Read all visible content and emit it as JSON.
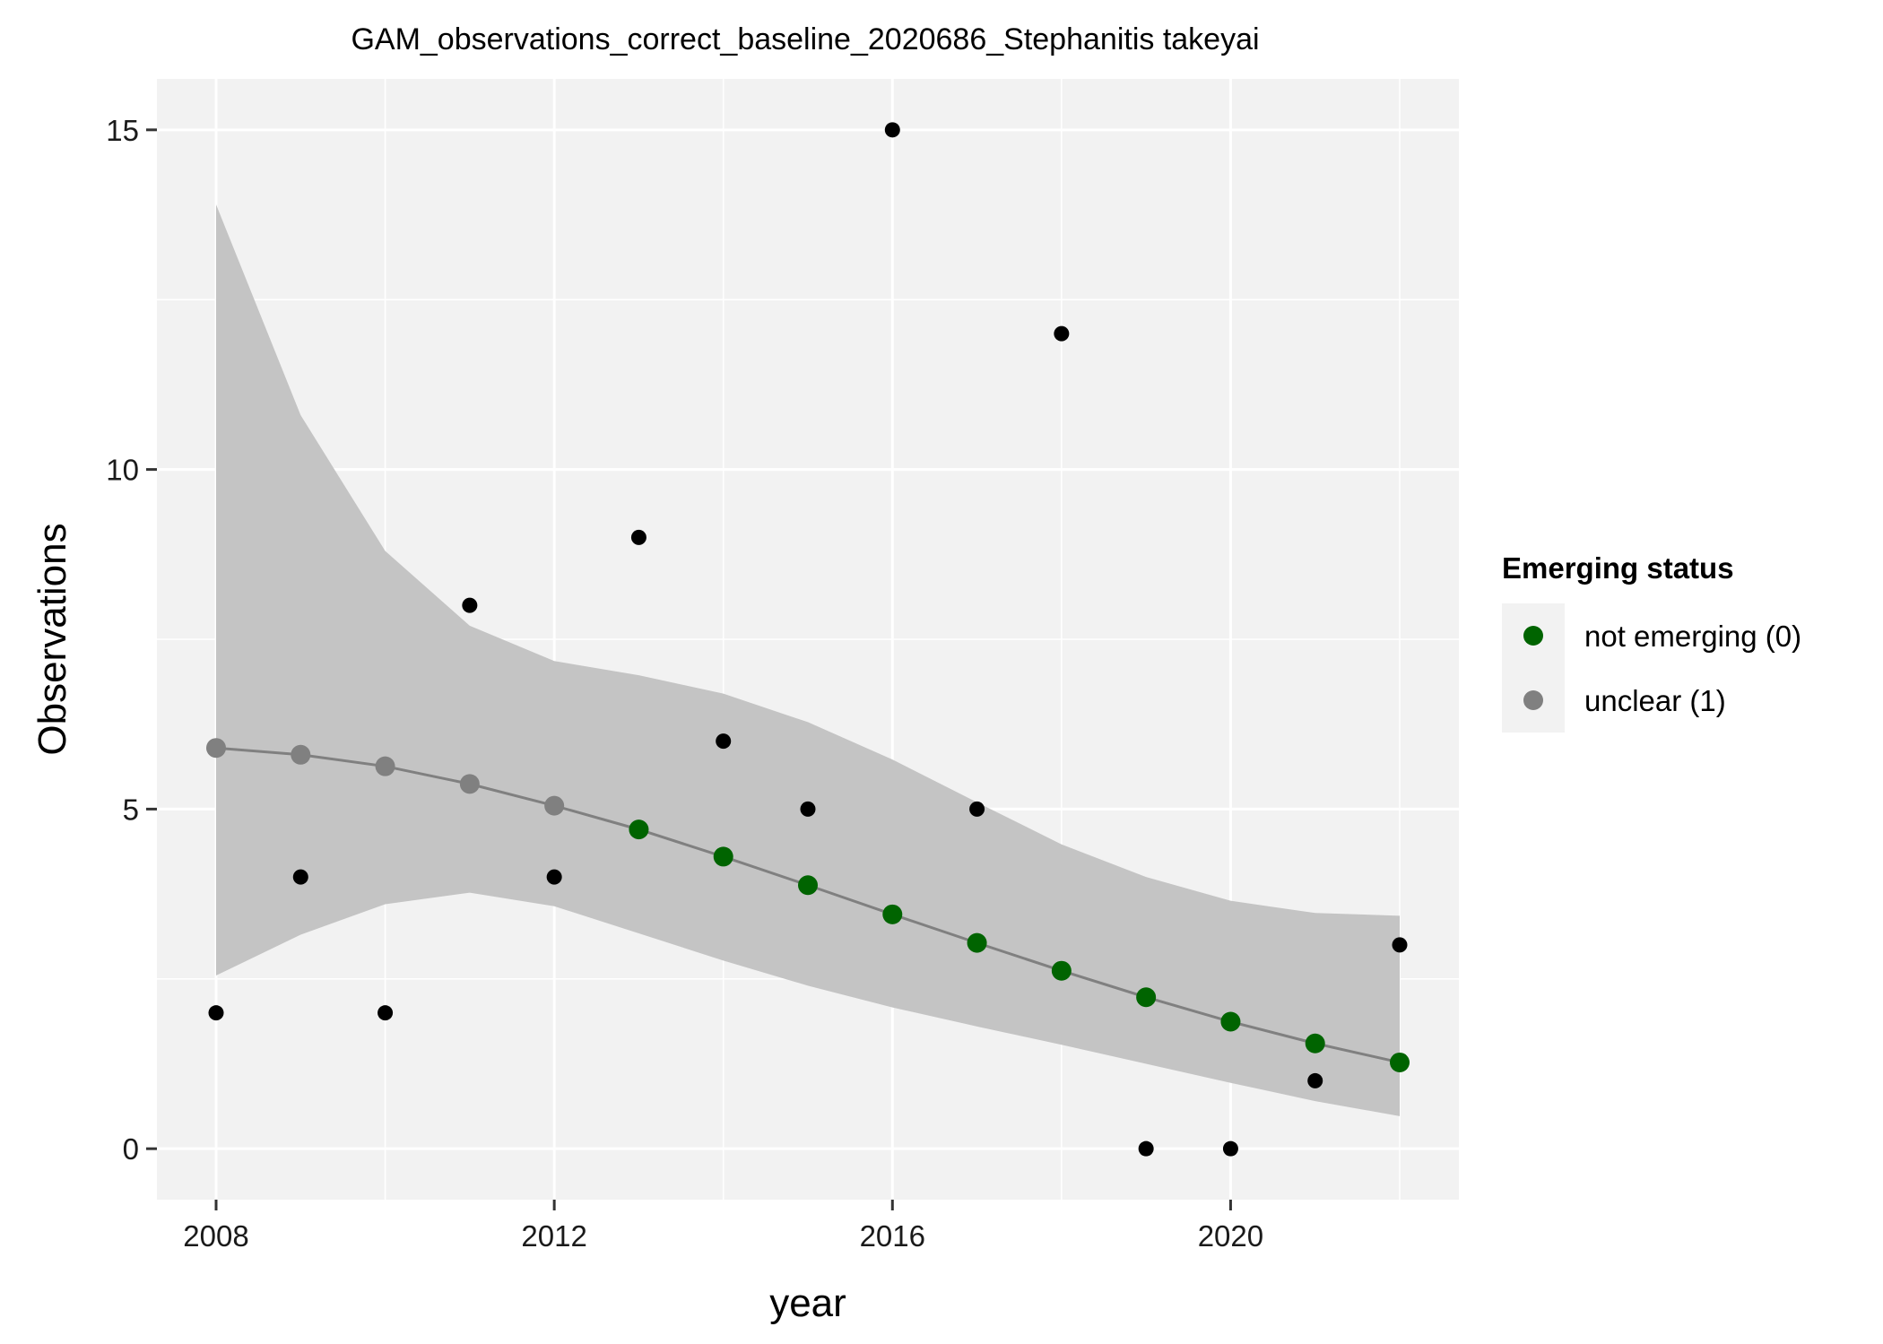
{
  "chart_data": {
    "type": "scatter",
    "title": "GAM_observations_correct_baseline_2020686_Stephanitis takeyai",
    "xlabel": "year",
    "ylabel": "Observations",
    "xlim": [
      2007.3,
      2022.7
    ],
    "ylim": [
      -0.75,
      15.75
    ],
    "x_ticks": [
      2008,
      2012,
      2016,
      2020
    ],
    "x_tick_labels": [
      "2008",
      "2012",
      "2016",
      "2020"
    ],
    "y_ticks": [
      0,
      5,
      10,
      15
    ],
    "y_tick_labels": [
      "0",
      "5",
      "10",
      "15"
    ],
    "grid": true,
    "legend_position": "right",
    "colors": {
      "panel": "#f2f2f2",
      "grid": "#ffffff",
      "ribbon": "#c4c4c4",
      "fit_line": "#808080",
      "observed": "#000000",
      "not_emerging": "#006400",
      "unclear": "#808080"
    },
    "legend": {
      "title": "Emerging status",
      "items": [
        {
          "label": "not emerging (0)",
          "color": "#006400"
        },
        {
          "label": "unclear (1)",
          "color": "#808080"
        }
      ]
    },
    "observed": {
      "x": [
        2008,
        2009,
        2010,
        2011,
        2012,
        2013,
        2014,
        2015,
        2016,
        2017,
        2018,
        2019,
        2020,
        2021,
        2022
      ],
      "y": [
        2,
        4,
        2,
        8,
        4,
        9,
        6,
        5,
        15,
        5,
        12,
        0,
        0,
        1,
        3
      ]
    },
    "fit": {
      "x": [
        2008,
        2009,
        2010,
        2011,
        2012,
        2013,
        2014,
        2015,
        2016,
        2017,
        2018,
        2019,
        2020,
        2021,
        2022
      ],
      "y": [
        5.9,
        5.8,
        5.63,
        5.37,
        5.05,
        4.7,
        4.3,
        3.88,
        3.45,
        3.03,
        2.62,
        2.23,
        1.87,
        1.55,
        1.27
      ],
      "lower": [
        2.55,
        3.15,
        3.6,
        3.77,
        3.57,
        3.17,
        2.77,
        2.4,
        2.08,
        1.8,
        1.53,
        1.25,
        0.97,
        0.7,
        0.48
      ],
      "upper": [
        13.9,
        10.8,
        8.8,
        7.7,
        7.18,
        6.97,
        6.7,
        6.28,
        5.73,
        5.1,
        4.48,
        4.0,
        3.65,
        3.47,
        3.43
      ],
      "status": [
        1,
        1,
        1,
        1,
        1,
        0,
        0,
        0,
        0,
        0,
        0,
        0,
        0,
        0,
        0
      ]
    }
  }
}
